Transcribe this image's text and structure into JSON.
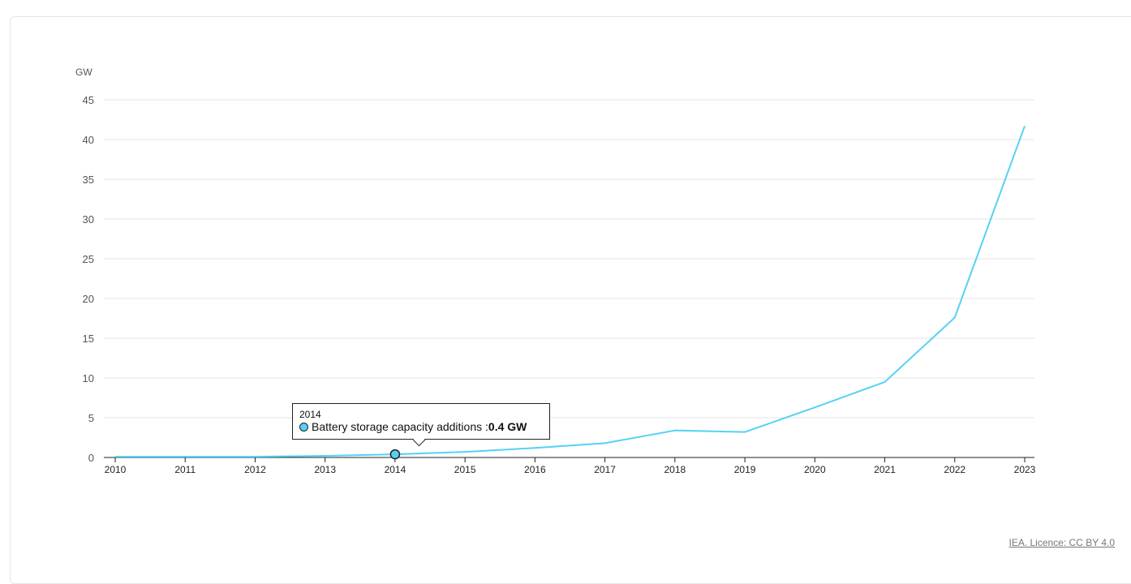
{
  "chart_data": {
    "type": "line",
    "title": "",
    "ylabel": "GW",
    "xlabel": "",
    "ylim": [
      0,
      45
    ],
    "yticks": [
      0,
      5,
      10,
      15,
      20,
      25,
      30,
      35,
      40,
      45
    ],
    "grid": true,
    "legend": "none",
    "x": [
      2010,
      2011,
      2012,
      2013,
      2014,
      2015,
      2016,
      2017,
      2018,
      2019,
      2020,
      2021,
      2022,
      2023
    ],
    "series": [
      {
        "name": "Battery storage capacity additions",
        "color": "#54d2f5",
        "values": [
          0.1,
          0.1,
          0.1,
          0.2,
          0.4,
          0.7,
          1.2,
          1.8,
          3.4,
          3.2,
          6.3,
          9.5,
          17.6,
          41.7
        ]
      }
    ]
  },
  "tooltip": {
    "year": "2014",
    "series_label": "Battery storage capacity additions : ",
    "value_text": "0.4 GW",
    "highlight_index": 4
  },
  "credit": "IEA. Licence: CC BY 4.0"
}
